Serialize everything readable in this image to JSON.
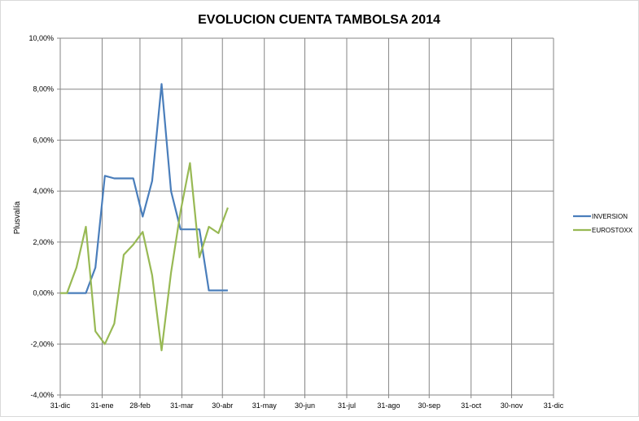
{
  "chart_data": {
    "type": "line",
    "title": "EVOLUCION CUENTA TAMBOLSA 2014",
    "ylabel": "Plusvalía",
    "xlabel": "",
    "ylim": [
      -4,
      10
    ],
    "yticks": [
      "-4,00%",
      "-2,00%",
      "0,00%",
      "2,00%",
      "4,00%",
      "6,00%",
      "8,00%",
      "10,00%"
    ],
    "xlim": [
      "2013-12-31",
      "2014-12-31"
    ],
    "xticks": [
      {
        "date": "2013-12-31",
        "label": "31-dic"
      },
      {
        "date": "2014-01-31",
        "label": "31-ene"
      },
      {
        "date": "2014-02-28",
        "label": "28-feb"
      },
      {
        "date": "2014-03-31",
        "label": "31-mar"
      },
      {
        "date": "2014-04-30",
        "label": "30-abr"
      },
      {
        "date": "2014-05-31",
        "label": "31-may"
      },
      {
        "date": "2014-06-30",
        "label": "30-jun"
      },
      {
        "date": "2014-07-31",
        "label": "31-jul"
      },
      {
        "date": "2014-08-31",
        "label": "31-ago"
      },
      {
        "date": "2014-09-30",
        "label": "30-sep"
      },
      {
        "date": "2014-10-31",
        "label": "31-oct"
      },
      {
        "date": "2014-11-30",
        "label": "30-nov"
      },
      {
        "date": "2014-12-31",
        "label": "31-dic"
      }
    ],
    "grid": true,
    "legend": "right",
    "x": [
      "2013-12-31",
      "2014-01-05",
      "2014-01-12",
      "2014-01-19",
      "2014-01-26",
      "2014-02-02",
      "2014-02-09",
      "2014-02-16",
      "2014-02-23",
      "2014-03-02",
      "2014-03-09",
      "2014-03-16",
      "2014-03-23",
      "2014-03-30",
      "2014-04-06",
      "2014-04-13",
      "2014-04-20",
      "2014-04-27",
      "2014-05-04"
    ],
    "series": [
      {
        "name": "INVERSION",
        "color": "#4a7ebb",
        "values": [
          null,
          0,
          0,
          0,
          1.0,
          4.6,
          4.5,
          4.5,
          4.5,
          3.0,
          4.4,
          8.2,
          4.0,
          2.5,
          2.5,
          2.5,
          0.1,
          0.1,
          0.1
        ]
      },
      {
        "name": "EUROSTOXX",
        "color": "#98b954",
        "values": [
          0,
          0,
          1.0,
          2.6,
          -1.5,
          -2.0,
          -1.2,
          1.5,
          1.9,
          2.4,
          0.7,
          -2.25,
          0.8,
          3.2,
          5.1,
          1.4,
          2.6,
          2.35,
          3.35
        ]
      }
    ]
  }
}
